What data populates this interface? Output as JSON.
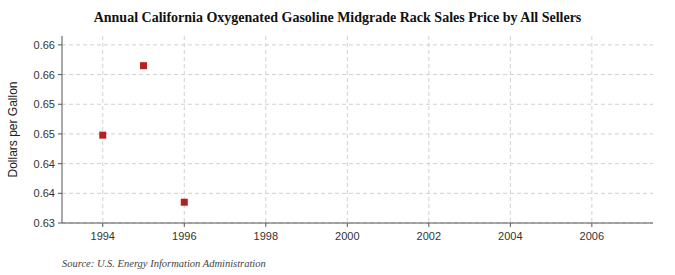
{
  "chart_data": {
    "type": "scatter",
    "title": "Annual California Oxygenated Gasoline Midgrade Rack Sales Price by All Sellers",
    "ylabel": "Dollars per Gallon",
    "annotations": [
      "Source: U.S. Energy Information Administration"
    ],
    "x": [
      1994,
      1995,
      1996
    ],
    "values": [
      0.6448,
      0.6565,
      0.6335
    ],
    "color": "#b22222",
    "marker": "square",
    "xlim": [
      1993.0,
      2007.5
    ],
    "ylim": [
      0.63,
      0.6615
    ],
    "xticks": [
      1994,
      1996,
      1998,
      2000,
      2002,
      2004,
      2006
    ],
    "yticks": [
      0.63,
      {
        "value": 0.635,
        "label": "0.64"
      },
      {
        "value": 0.64,
        "label": "0.64"
      },
      {
        "value": 0.645,
        "label": "0.65"
      },
      {
        "value": 0.65,
        "label": "0.65"
      },
      {
        "value": 0.655,
        "label": "0.66"
      },
      {
        "value": 0.66,
        "label": "0.66"
      }
    ],
    "grid": true
  }
}
